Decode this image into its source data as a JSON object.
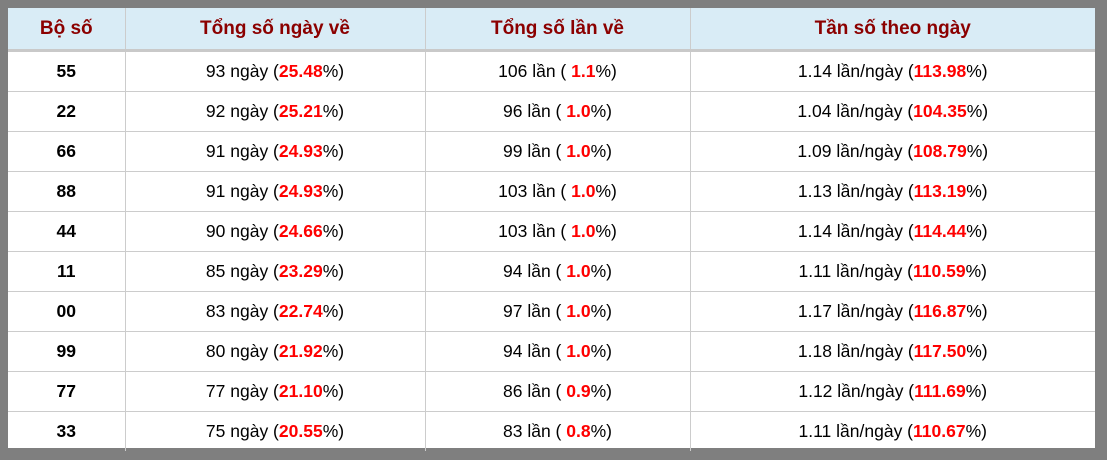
{
  "colors": {
    "header_bg": "#d9ecf6",
    "header_text": "#8b0000",
    "accent_red": "#ff0000",
    "frame_gray": "#7f7f7f",
    "grid_line": "#cccccc"
  },
  "table": {
    "headers": [
      {
        "label": "Bộ số"
      },
      {
        "label": "Tổng số ngày về"
      },
      {
        "label": "Tổng số lần về"
      },
      {
        "label": "Tần số theo ngày"
      }
    ],
    "rows": [
      {
        "pair": "55",
        "days_prefix": "93 ngày (",
        "days_pct": "25.48",
        "days_suffix": "%)",
        "times_prefix": "106 lần ( ",
        "times_pct": "1.1",
        "times_suffix": "%)",
        "freq_prefix": "1.14 lần/ngày (",
        "freq_pct": "113.98",
        "freq_suffix": "%)"
      },
      {
        "pair": "22",
        "days_prefix": "92 ngày (",
        "days_pct": "25.21",
        "days_suffix": "%)",
        "times_prefix": "96 lần ( ",
        "times_pct": "1.0",
        "times_suffix": "%)",
        "freq_prefix": "1.04 lần/ngày (",
        "freq_pct": "104.35",
        "freq_suffix": "%)"
      },
      {
        "pair": "66",
        "days_prefix": "91 ngày (",
        "days_pct": "24.93",
        "days_suffix": "%)",
        "times_prefix": "99 lần ( ",
        "times_pct": "1.0",
        "times_suffix": "%)",
        "freq_prefix": "1.09 lần/ngày (",
        "freq_pct": "108.79",
        "freq_suffix": "%)"
      },
      {
        "pair": "88",
        "days_prefix": "91 ngày (",
        "days_pct": "24.93",
        "days_suffix": "%)",
        "times_prefix": "103 lần ( ",
        "times_pct": "1.0",
        "times_suffix": "%)",
        "freq_prefix": "1.13 lần/ngày (",
        "freq_pct": "113.19",
        "freq_suffix": "%)"
      },
      {
        "pair": "44",
        "days_prefix": "90 ngày (",
        "days_pct": "24.66",
        "days_suffix": "%)",
        "times_prefix": "103 lần ( ",
        "times_pct": "1.0",
        "times_suffix": "%)",
        "freq_prefix": "1.14 lần/ngày (",
        "freq_pct": "114.44",
        "freq_suffix": "%)"
      },
      {
        "pair": "11",
        "days_prefix": "85 ngày (",
        "days_pct": "23.29",
        "days_suffix": "%)",
        "times_prefix": "94 lần ( ",
        "times_pct": "1.0",
        "times_suffix": "%)",
        "freq_prefix": "1.11 lần/ngày (",
        "freq_pct": "110.59",
        "freq_suffix": "%)"
      },
      {
        "pair": "00",
        "days_prefix": "83 ngày (",
        "days_pct": "22.74",
        "days_suffix": "%)",
        "times_prefix": "97 lần ( ",
        "times_pct": "1.0",
        "times_suffix": "%)",
        "freq_prefix": "1.17 lần/ngày (",
        "freq_pct": "116.87",
        "freq_suffix": "%)"
      },
      {
        "pair": "99",
        "days_prefix": "80 ngày (",
        "days_pct": "21.92",
        "days_suffix": "%)",
        "times_prefix": "94 lần ( ",
        "times_pct": "1.0",
        "times_suffix": "%)",
        "freq_prefix": "1.18 lần/ngày (",
        "freq_pct": "117.50",
        "freq_suffix": "%)"
      },
      {
        "pair": "77",
        "days_prefix": "77 ngày (",
        "days_pct": "21.10",
        "days_suffix": "%)",
        "times_prefix": "86 lần ( ",
        "times_pct": "0.9",
        "times_suffix": "%)",
        "freq_prefix": "1.12 lần/ngày (",
        "freq_pct": "111.69",
        "freq_suffix": "%)"
      },
      {
        "pair": "33",
        "days_prefix": "75 ngày (",
        "days_pct": "20.55",
        "days_suffix": "%)",
        "times_prefix": "83 lần ( ",
        "times_pct": "0.8",
        "times_suffix": "%)",
        "freq_prefix": "1.11 lần/ngày (",
        "freq_pct": "110.67",
        "freq_suffix": "%)"
      }
    ]
  }
}
